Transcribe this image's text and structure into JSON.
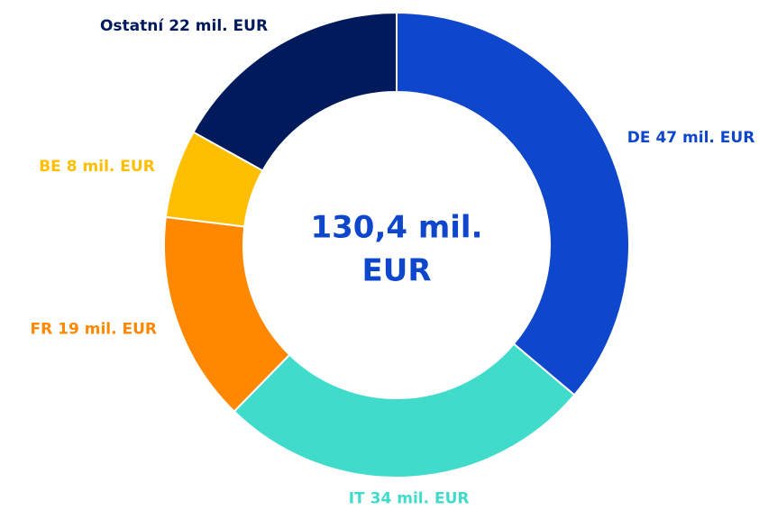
{
  "chart_data": {
    "type": "donut",
    "categories": [
      "DE",
      "IT",
      "FR",
      "BE",
      "Ostatní"
    ],
    "values": [
      47,
      34,
      19,
      8,
      22
    ],
    "value_labels": [
      "47 mil. EUR",
      "34 mil. EUR",
      "19 mil. EUR",
      "8 mil. EUR",
      "22 mil. EUR"
    ],
    "colors": [
      "#0e47cb",
      "#40dbca",
      "#ff8800",
      "#ffbf00",
      "#001a5b"
    ],
    "center_label": [
      "130,4 mil.",
      "EUR"
    ],
    "center_color": "#0e47cb"
  }
}
